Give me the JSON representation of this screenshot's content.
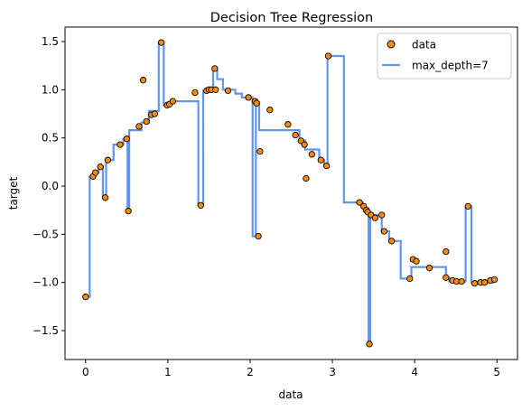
{
  "chart_data": {
    "type": "scatter",
    "title": "Decision Tree Regression",
    "xlabel": "data",
    "ylabel": "target",
    "xlim": [
      -0.25,
      5.25
    ],
    "ylim": [
      -1.8,
      1.65
    ],
    "xticks": [
      0,
      1,
      2,
      3,
      4,
      5
    ],
    "xtick_labels": [
      "0",
      "1",
      "2",
      "3",
      "4",
      "5"
    ],
    "yticks": [
      -1.5,
      -1.0,
      -0.5,
      0.0,
      0.5,
      1.0,
      1.5
    ],
    "ytick_labels": [
      "−1.5",
      "−1.0",
      "−0.5",
      "0.0",
      "0.5",
      "1.0",
      "1.5"
    ],
    "grid": false,
    "legend_position": "top-right",
    "scatter": {
      "name": "data",
      "color": "#ff8c00",
      "edgecolor": "#000000",
      "points": [
        [
          0.0,
          -1.15
        ],
        [
          0.09,
          0.1
        ],
        [
          0.12,
          0.14
        ],
        [
          0.18,
          0.2
        ],
        [
          0.24,
          -0.12
        ],
        [
          0.27,
          0.27
        ],
        [
          0.42,
          0.43
        ],
        [
          0.5,
          0.49
        ],
        [
          0.52,
          -0.26
        ],
        [
          0.65,
          0.62
        ],
        [
          0.7,
          1.1
        ],
        [
          0.74,
          0.67
        ],
        [
          0.8,
          0.74
        ],
        [
          0.84,
          0.75
        ],
        [
          0.92,
          1.49
        ],
        [
          0.99,
          0.84
        ],
        [
          1.02,
          0.85
        ],
        [
          1.06,
          0.88
        ],
        [
          1.33,
          0.97
        ],
        [
          1.4,
          -0.2
        ],
        [
          1.47,
          0.99
        ],
        [
          1.5,
          1.0
        ],
        [
          1.53,
          1.0
        ],
        [
          1.58,
          1.0
        ],
        [
          1.57,
          1.22
        ],
        [
          1.73,
          0.99
        ],
        [
          1.98,
          0.92
        ],
        [
          2.06,
          0.88
        ],
        [
          2.1,
          -0.52
        ],
        [
          2.08,
          0.86
        ],
        [
          2.12,
          0.36
        ],
        [
          2.24,
          0.79
        ],
        [
          2.46,
          0.64
        ],
        [
          2.55,
          0.53
        ],
        [
          2.62,
          0.47
        ],
        [
          2.66,
          0.43
        ],
        [
          2.68,
          0.08
        ],
        [
          2.75,
          0.33
        ],
        [
          2.86,
          0.27
        ],
        [
          2.93,
          0.21
        ],
        [
          2.95,
          1.35
        ],
        [
          3.33,
          -0.17
        ],
        [
          3.38,
          -0.21
        ],
        [
          3.41,
          -0.25
        ],
        [
          3.43,
          -0.27
        ],
        [
          3.45,
          -1.64
        ],
        [
          3.47,
          -0.3
        ],
        [
          3.52,
          -0.33
        ],
        [
          3.6,
          -0.3
        ],
        [
          3.63,
          -0.47
        ],
        [
          3.72,
          -0.57
        ],
        [
          3.94,
          -0.96
        ],
        [
          3.98,
          -0.76
        ],
        [
          4.02,
          -0.78
        ],
        [
          4.18,
          -0.85
        ],
        [
          4.38,
          -0.68
        ],
        [
          4.38,
          -0.95
        ],
        [
          4.46,
          -0.98
        ],
        [
          4.51,
          -0.99
        ],
        [
          4.57,
          -0.99
        ],
        [
          4.65,
          -0.21
        ],
        [
          4.73,
          -1.01
        ],
        [
          4.8,
          -1.0
        ],
        [
          4.85,
          -1.0
        ],
        [
          4.92,
          -0.98
        ],
        [
          4.97,
          -0.97
        ]
      ]
    },
    "line": {
      "name": "max_depth=7",
      "color": "#6495ed",
      "steps": [
        [
          0.0,
          -1.15
        ],
        [
          0.05,
          -1.15
        ],
        [
          0.05,
          0.1
        ],
        [
          0.1,
          0.1
        ],
        [
          0.1,
          0.14
        ],
        [
          0.16,
          0.14
        ],
        [
          0.16,
          0.2
        ],
        [
          0.21,
          0.2
        ],
        [
          0.21,
          -0.12
        ],
        [
          0.25,
          -0.12
        ],
        [
          0.25,
          0.27
        ],
        [
          0.34,
          0.27
        ],
        [
          0.34,
          0.43
        ],
        [
          0.46,
          0.43
        ],
        [
          0.46,
          0.49
        ],
        [
          0.51,
          0.49
        ],
        [
          0.51,
          -0.26
        ],
        [
          0.53,
          -0.26
        ],
        [
          0.53,
          0.58
        ],
        [
          0.68,
          0.58
        ],
        [
          0.68,
          0.66
        ],
        [
          0.77,
          0.66
        ],
        [
          0.77,
          0.78
        ],
        [
          0.89,
          0.78
        ],
        [
          0.89,
          1.49
        ],
        [
          0.95,
          1.49
        ],
        [
          0.95,
          0.84
        ],
        [
          1.03,
          0.84
        ],
        [
          1.03,
          0.88
        ],
        [
          1.37,
          0.88
        ],
        [
          1.37,
          -0.2
        ],
        [
          1.43,
          -0.2
        ],
        [
          1.43,
          0.99
        ],
        [
          1.55,
          0.99
        ],
        [
          1.55,
          1.22
        ],
        [
          1.6,
          1.22
        ],
        [
          1.6,
          1.11
        ],
        [
          1.67,
          1.11
        ],
        [
          1.67,
          1.0
        ],
        [
          1.82,
          1.0
        ],
        [
          1.82,
          0.96
        ],
        [
          1.9,
          0.96
        ],
        [
          1.9,
          0.92
        ],
        [
          2.03,
          0.92
        ],
        [
          2.03,
          -0.52
        ],
        [
          2.07,
          -0.52
        ],
        [
          2.07,
          0.87
        ],
        [
          2.11,
          0.87
        ],
        [
          2.11,
          0.58
        ],
        [
          2.6,
          0.58
        ],
        [
          2.6,
          0.47
        ],
        [
          2.67,
          0.47
        ],
        [
          2.67,
          0.38
        ],
        [
          2.84,
          0.38
        ],
        [
          2.84,
          0.27
        ],
        [
          2.9,
          0.27
        ],
        [
          2.9,
          0.21
        ],
        [
          2.94,
          0.21
        ],
        [
          2.94,
          1.35
        ],
        [
          3.14,
          1.35
        ],
        [
          3.14,
          -0.17
        ],
        [
          3.37,
          -0.17
        ],
        [
          3.37,
          -0.23
        ],
        [
          3.44,
          -0.23
        ],
        [
          3.44,
          -1.64
        ],
        [
          3.46,
          -1.64
        ],
        [
          3.46,
          -0.3
        ],
        [
          3.6,
          -0.3
        ],
        [
          3.6,
          -0.47
        ],
        [
          3.69,
          -0.47
        ],
        [
          3.69,
          -0.57
        ],
        [
          3.83,
          -0.57
        ],
        [
          3.83,
          -0.96
        ],
        [
          3.96,
          -0.96
        ],
        [
          3.96,
          -0.84
        ],
        [
          4.38,
          -0.84
        ],
        [
          4.38,
          -0.95
        ],
        [
          4.42,
          -0.95
        ],
        [
          4.42,
          -0.99
        ],
        [
          4.62,
          -0.99
        ],
        [
          4.62,
          -0.21
        ],
        [
          4.69,
          -0.21
        ],
        [
          4.69,
          -1.0
        ],
        [
          4.95,
          -1.0
        ],
        [
          4.95,
          -0.97
        ],
        [
          5.0,
          -0.97
        ]
      ]
    },
    "legend": [
      "data",
      "max_depth=7"
    ]
  }
}
